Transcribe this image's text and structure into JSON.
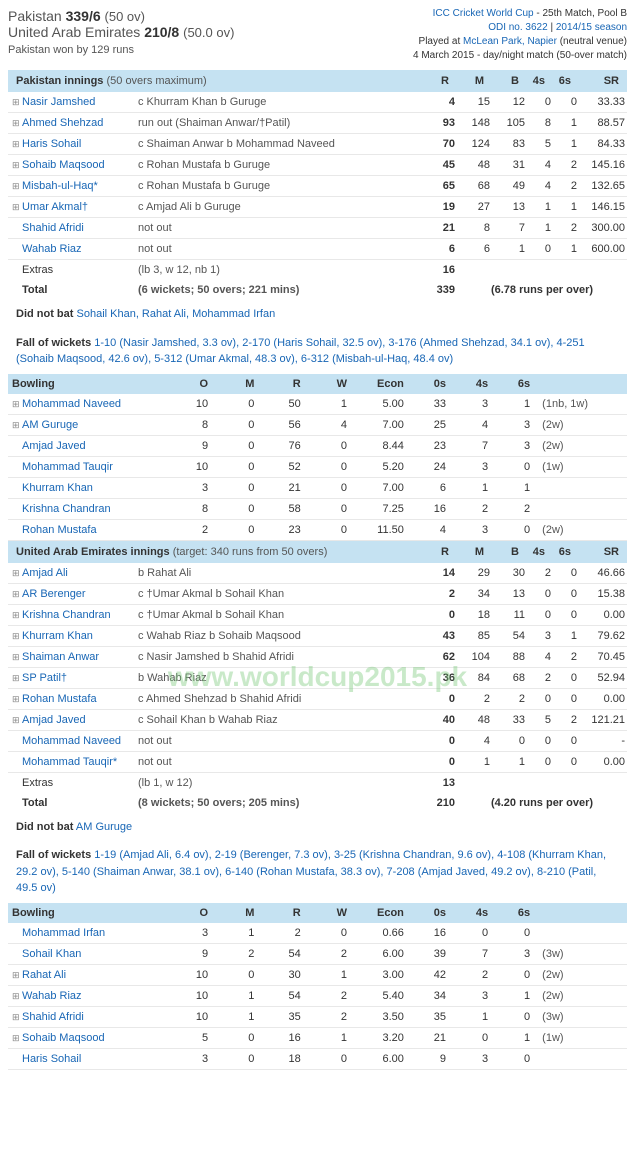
{
  "header": {
    "team1": "Pakistan",
    "score1": "339/6",
    "overs1": "(50 ov)",
    "team2": "United Arab Emirates",
    "score2": "210/8",
    "overs2": "(50.0 ov)",
    "result": "Pakistan won by 129 runs",
    "tournament": "ICC Cricket World Cup",
    "match_desc": " - 25th Match, Pool B",
    "odi_no": "ODI no. 3622",
    "season": "2014/15 season",
    "venue_pre": "Played at ",
    "venue": "McLean Park, Napier",
    "venue_post": " (neutral venue)",
    "date": "4 March 2015 - day/night match (50-over match)"
  },
  "innings1": {
    "title": "Pakistan innings",
    "subtitle": "(50 overs maximum)",
    "batsmen": [
      {
        "exp": "⊞",
        "name": "Nasir Jamshed",
        "how": "c Khurram Khan b Guruge",
        "r": "4",
        "m": "15",
        "b": "12",
        "f": "0",
        "s": "0",
        "sr": "33.33"
      },
      {
        "exp": "⊞",
        "name": "Ahmed Shehzad",
        "how": "run out (Shaiman Anwar/†Patil)",
        "r": "93",
        "m": "148",
        "b": "105",
        "f": "8",
        "s": "1",
        "sr": "88.57"
      },
      {
        "exp": "⊞",
        "name": "Haris Sohail",
        "how": "c Shaiman Anwar b Mohammad Naveed",
        "r": "70",
        "m": "124",
        "b": "83",
        "f": "5",
        "s": "1",
        "sr": "84.33"
      },
      {
        "exp": "⊞",
        "name": "Sohaib Maqsood",
        "how": "c Rohan Mustafa b Guruge",
        "r": "45",
        "m": "48",
        "b": "31",
        "f": "4",
        "s": "2",
        "sr": "145.16"
      },
      {
        "exp": "⊞",
        "name": "Misbah-ul-Haq*",
        "how": "c Rohan Mustafa b Guruge",
        "r": "65",
        "m": "68",
        "b": "49",
        "f": "4",
        "s": "2",
        "sr": "132.65"
      },
      {
        "exp": "⊞",
        "name": "Umar Akmal†",
        "how": "c Amjad Ali b Guruge",
        "r": "19",
        "m": "27",
        "b": "13",
        "f": "1",
        "s": "1",
        "sr": "146.15"
      },
      {
        "exp": "",
        "name": "Shahid Afridi",
        "how": "not out",
        "r": "21",
        "m": "8",
        "b": "7",
        "f": "1",
        "s": "2",
        "sr": "300.00"
      },
      {
        "exp": "",
        "name": "Wahab Riaz",
        "how": "not out",
        "r": "6",
        "m": "6",
        "b": "1",
        "f": "0",
        "s": "1",
        "sr": "600.00"
      }
    ],
    "extras_label": "Extras",
    "extras_detail": "(lb 3, w 12, nb 1)",
    "extras_runs": "16",
    "total_label": "Total",
    "total_detail": "(6 wickets; 50 overs; 221 mins)",
    "total_runs": "339",
    "runrate": "(6.78 runs per over)",
    "dnb_label": "Did not bat",
    "dnb": "Sohail Khan, Rahat Ali, Mohammad Irfan",
    "fow_label": "Fall of wickets",
    "fow": "1-10 (Nasir Jamshed, 3.3 ov), 2-170 (Haris Sohail, 32.5 ov), 3-176 (Ahmed Shehzad, 34.1 ov), 4-251 (Sohaib Maqsood, 42.6 ov), 5-312 (Umar Akmal, 48.3 ov), 6-312 (Misbah-ul-Haq, 48.4 ov)"
  },
  "bowling1": {
    "title": "Bowling",
    "bowlers": [
      {
        "exp": "⊞",
        "name": "Mohammad Naveed",
        "o": "10",
        "m": "0",
        "r": "50",
        "w": "1",
        "econ": "5.00",
        "z": "33",
        "f": "3",
        "s": "1",
        "ex": "(1nb, 1w)"
      },
      {
        "exp": "⊞",
        "name": "AM Guruge",
        "o": "8",
        "m": "0",
        "r": "56",
        "w": "4",
        "econ": "7.00",
        "z": "25",
        "f": "4",
        "s": "3",
        "ex": "(2w)"
      },
      {
        "exp": "",
        "name": "Amjad Javed",
        "o": "9",
        "m": "0",
        "r": "76",
        "w": "0",
        "econ": "8.44",
        "z": "23",
        "f": "7",
        "s": "3",
        "ex": "(2w)"
      },
      {
        "exp": "",
        "name": "Mohammad Tauqir",
        "o": "10",
        "m": "0",
        "r": "52",
        "w": "0",
        "econ": "5.20",
        "z": "24",
        "f": "3",
        "s": "0",
        "ex": "(1w)"
      },
      {
        "exp": "",
        "name": "Khurram Khan",
        "o": "3",
        "m": "0",
        "r": "21",
        "w": "0",
        "econ": "7.00",
        "z": "6",
        "f": "1",
        "s": "1",
        "ex": ""
      },
      {
        "exp": "",
        "name": "Krishna Chandran",
        "o": "8",
        "m": "0",
        "r": "58",
        "w": "0",
        "econ": "7.25",
        "z": "16",
        "f": "2",
        "s": "2",
        "ex": ""
      },
      {
        "exp": "",
        "name": "Rohan Mustafa",
        "o": "2",
        "m": "0",
        "r": "23",
        "w": "0",
        "econ": "11.50",
        "z": "4",
        "f": "3",
        "s": "0",
        "ex": "(2w)"
      }
    ]
  },
  "innings2": {
    "title": "United Arab Emirates innings",
    "subtitle": "(target: 340 runs from 50 overs)",
    "batsmen": [
      {
        "exp": "⊞",
        "name": "Amjad Ali",
        "how": "b Rahat Ali",
        "r": "14",
        "m": "29",
        "b": "30",
        "f": "2",
        "s": "0",
        "sr": "46.66"
      },
      {
        "exp": "⊞",
        "name": "AR Berenger",
        "how": "c †Umar Akmal b Sohail Khan",
        "r": "2",
        "m": "34",
        "b": "13",
        "f": "0",
        "s": "0",
        "sr": "15.38"
      },
      {
        "exp": "⊞",
        "name": "Krishna Chandran",
        "how": "c †Umar Akmal b Sohail Khan",
        "r": "0",
        "m": "18",
        "b": "11",
        "f": "0",
        "s": "0",
        "sr": "0.00"
      },
      {
        "exp": "⊞",
        "name": "Khurram Khan",
        "how": "c Wahab Riaz b Sohaib Maqsood",
        "r": "43",
        "m": "85",
        "b": "54",
        "f": "3",
        "s": "1",
        "sr": "79.62"
      },
      {
        "exp": "⊞",
        "name": "Shaiman Anwar",
        "how": "c Nasir Jamshed b Shahid Afridi",
        "r": "62",
        "m": "104",
        "b": "88",
        "f": "4",
        "s": "2",
        "sr": "70.45"
      },
      {
        "exp": "⊞",
        "name": "SP Patil†",
        "how": "b Wahab Riaz",
        "r": "36",
        "m": "84",
        "b": "68",
        "f": "2",
        "s": "0",
        "sr": "52.94"
      },
      {
        "exp": "⊞",
        "name": "Rohan Mustafa",
        "how": "c Ahmed Shehzad b Shahid Afridi",
        "r": "0",
        "m": "2",
        "b": "2",
        "f": "0",
        "s": "0",
        "sr": "0.00"
      },
      {
        "exp": "⊞",
        "name": "Amjad Javed",
        "how": "c Sohail Khan b Wahab Riaz",
        "r": "40",
        "m": "48",
        "b": "33",
        "f": "5",
        "s": "2",
        "sr": "121.21"
      },
      {
        "exp": "",
        "name": "Mohammad Naveed",
        "how": "not out",
        "r": "0",
        "m": "4",
        "b": "0",
        "f": "0",
        "s": "0",
        "sr": "-"
      },
      {
        "exp": "",
        "name": "Mohammad Tauqir*",
        "how": "not out",
        "r": "0",
        "m": "1",
        "b": "1",
        "f": "0",
        "s": "0",
        "sr": "0.00"
      }
    ],
    "extras_label": "Extras",
    "extras_detail": "(lb 1, w 12)",
    "extras_runs": "13",
    "total_label": "Total",
    "total_detail": "(8 wickets; 50 overs; 205 mins)",
    "total_runs": "210",
    "runrate": "(4.20 runs per over)",
    "dnb_label": "Did not bat",
    "dnb": "AM Guruge",
    "fow_label": "Fall of wickets",
    "fow": "1-19 (Amjad Ali, 6.4 ov), 2-19 (Berenger, 7.3 ov), 3-25 (Krishna Chandran, 9.6 ov), 4-108 (Khurram Khan, 29.2 ov), 5-140 (Shaiman Anwar, 38.1 ov), 6-140 (Rohan Mustafa, 38.3 ov), 7-208 (Amjad Javed, 49.2 ov), 8-210 (Patil, 49.5 ov)"
  },
  "bowling2": {
    "title": "Bowling",
    "bowlers": [
      {
        "exp": "",
        "name": "Mohammad Irfan",
        "o": "3",
        "m": "1",
        "r": "2",
        "w": "0",
        "econ": "0.66",
        "z": "16",
        "f": "0",
        "s": "0",
        "ex": ""
      },
      {
        "exp": "",
        "name": "Sohail Khan",
        "o": "9",
        "m": "2",
        "r": "54",
        "w": "2",
        "econ": "6.00",
        "z": "39",
        "f": "7",
        "s": "3",
        "ex": "(3w)"
      },
      {
        "exp": "⊞",
        "name": "Rahat Ali",
        "o": "10",
        "m": "0",
        "r": "30",
        "w": "1",
        "econ": "3.00",
        "z": "42",
        "f": "2",
        "s": "0",
        "ex": "(2w)"
      },
      {
        "exp": "⊞",
        "name": "Wahab Riaz",
        "o": "10",
        "m": "1",
        "r": "54",
        "w": "2",
        "econ": "5.40",
        "z": "34",
        "f": "3",
        "s": "1",
        "ex": "(2w)"
      },
      {
        "exp": "⊞",
        "name": "Shahid Afridi",
        "o": "10",
        "m": "1",
        "r": "35",
        "w": "2",
        "econ": "3.50",
        "z": "35",
        "f": "1",
        "s": "0",
        "ex": "(3w)"
      },
      {
        "exp": "⊞",
        "name": "Sohaib Maqsood",
        "o": "5",
        "m": "0",
        "r": "16",
        "w": "1",
        "econ": "3.20",
        "z": "21",
        "f": "0",
        "s": "1",
        "ex": "(1w)"
      },
      {
        "exp": "",
        "name": "Haris Sohail",
        "o": "3",
        "m": "0",
        "r": "18",
        "w": "0",
        "econ": "6.00",
        "z": "9",
        "f": "3",
        "s": "0",
        "ex": ""
      }
    ]
  },
  "watermark": "www.worldcup2015.pk",
  "headers": {
    "R": "R",
    "M": "M",
    "B": "B",
    "4s": "4s",
    "6s": "6s",
    "SR": "SR",
    "O": "O",
    "W": "W",
    "Econ": "Econ",
    "0s": "0s"
  }
}
